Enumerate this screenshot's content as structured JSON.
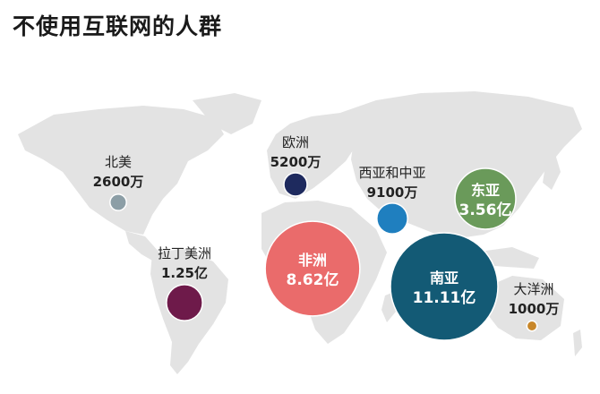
{
  "title": "不使用互联网的人群",
  "chart_data": {
    "type": "bubble-map",
    "title": "不使用互联网的人群",
    "unit": "万",
    "regions": [
      {
        "name": "北美",
        "label": "2600万",
        "value": 2600,
        "color": "#8c9ea6",
        "label_inside": false
      },
      {
        "name": "拉丁美洲",
        "label": "1.25亿",
        "value": 12500,
        "color": "#6e1a4a",
        "label_inside": false
      },
      {
        "name": "欧洲",
        "label": "5200万",
        "value": 5200,
        "color": "#1e2a5e",
        "label_inside": false
      },
      {
        "name": "非洲",
        "label": "8.62亿",
        "value": 86200,
        "color": "#ea6b6b",
        "label_inside": true
      },
      {
        "name": "西亚和中亚",
        "label": "9100万",
        "value": 9100,
        "color": "#1f7fbf",
        "label_inside": false
      },
      {
        "name": "东亚",
        "label": "3.56亿",
        "value": 35600,
        "color": "#6a9a5a",
        "label_inside": true
      },
      {
        "name": "南亚",
        "label": "11.11亿",
        "value": 111100,
        "color": "#135a75",
        "label_inside": true
      },
      {
        "name": "大洋洲",
        "label": "1000万",
        "value": 1000,
        "color": "#c8872a",
        "label_inside": false
      }
    ]
  }
}
